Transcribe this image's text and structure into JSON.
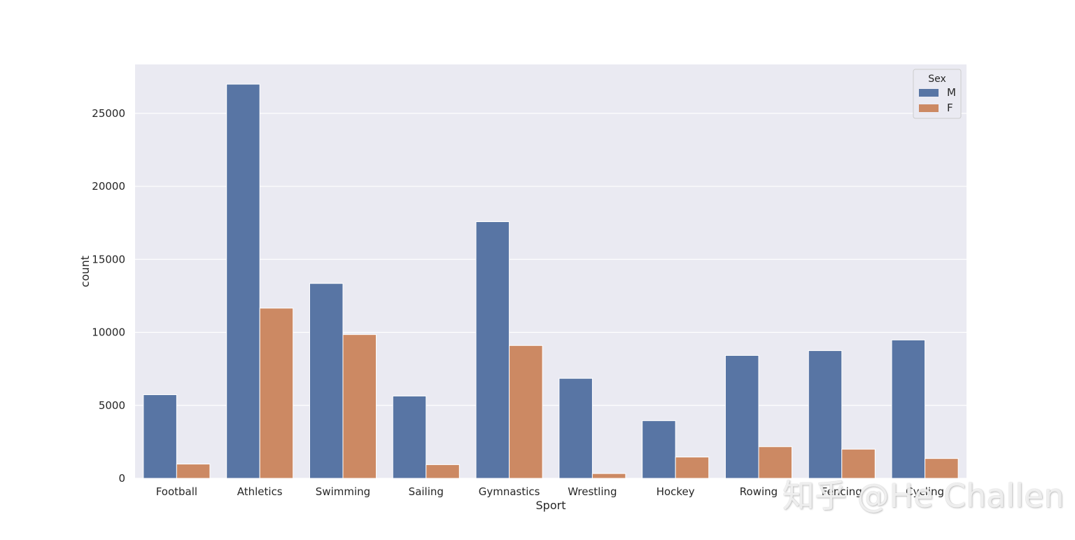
{
  "chart_data": {
    "type": "bar",
    "xlabel": "Sport",
    "ylabel": "count",
    "categories": [
      "Football",
      "Athletics",
      "Swimming",
      "Sailing",
      "Gymnastics",
      "Wrestling",
      "Hockey",
      "Rowing",
      "Fencing",
      "Cycling"
    ],
    "series": [
      {
        "name": "M",
        "color": "#5875a4",
        "values": [
          5730,
          27000,
          13350,
          5640,
          17580,
          6850,
          3950,
          8420,
          8750,
          9480
        ]
      },
      {
        "name": "F",
        "color": "#cc8963",
        "values": [
          980,
          11660,
          9850,
          940,
          9100,
          330,
          1460,
          2170,
          2000,
          1360
        ]
      }
    ],
    "legend": {
      "title": "Sex",
      "position": "top-right"
    },
    "ylim": [
      0,
      28350
    ],
    "yticks": [
      0,
      5000,
      10000,
      15000,
      20000,
      25000
    ],
    "grid": true,
    "background_color": "#eaeaf2"
  },
  "watermark": "知乎 @He Challen"
}
